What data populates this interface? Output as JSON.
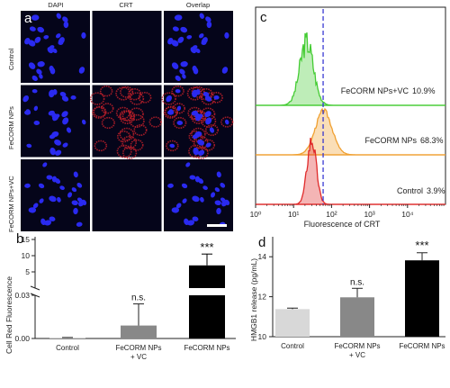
{
  "panel_a": {
    "letter": "a",
    "columns": [
      "DAPI",
      "CRT",
      "Overlap"
    ],
    "rows": [
      "Control",
      "FeCORM NPs",
      "FeCORM NPs+VC"
    ],
    "colors": {
      "nucleus": "#2a2af0",
      "crt": "#c0202a",
      "background": "#05051a"
    }
  },
  "panel_b": {
    "letter": "b",
    "ylabel": "Cell Red Fluorescence",
    "yticks_lower": [
      "0.00",
      "0.03"
    ],
    "yticks_upper": [
      "5",
      "10",
      "15"
    ],
    "categories": [
      "Control",
      "FeCORM NPs\n+ VC",
      "FeCORM NPs"
    ],
    "significance": [
      "",
      "n.s.",
      "***"
    ]
  },
  "panel_c": {
    "letter": "c",
    "xlabel": "Fluorescence of CRT",
    "xticks": [
      "10⁰",
      "10¹",
      "10²",
      "10³",
      "10⁴"
    ],
    "labels": [
      {
        "name": "FeCORM NPs+VC",
        "value": "10.9%"
      },
      {
        "name": "FeCORM NPs",
        "value": "68.3%"
      },
      {
        "name": "Control",
        "value": "3.9%"
      }
    ],
    "colors": {
      "vc": "#44cc33",
      "np": "#f0a030",
      "control": "#e02a2a",
      "dash": "#2a2ad0"
    }
  },
  "panel_d": {
    "letter": "d",
    "ylabel": "HMGB1 release (pg/mL)",
    "yticks": [
      "10",
      "12",
      "14"
    ],
    "categories": [
      "Control",
      "FeCORM NPs\n+ VC",
      "FeCORM NPs"
    ],
    "significance": [
      "",
      "n.s.",
      "***"
    ]
  },
  "chart_data": [
    {
      "type": "bar",
      "panel": "b",
      "title": "",
      "xlabel": "",
      "ylabel": "Cell Red Fluorescence",
      "y_axis_broken": true,
      "lower_ylim": [
        0,
        0.03
      ],
      "upper_ylim": [
        0,
        15
      ],
      "categories": [
        "Control",
        "FeCORM NPs + VC",
        "FeCORM NPs"
      ],
      "values": [
        0.0005,
        0.009,
        7.0
      ],
      "errors": [
        0.0002,
        0.015,
        3.5
      ],
      "bar_colors": [
        "#c8c8c8",
        "#888888",
        "#000000"
      ]
    },
    {
      "type": "bar",
      "panel": "d",
      "title": "",
      "xlabel": "",
      "ylabel": "HMGB1 release (pg/mL)",
      "ylim": [
        10,
        15
      ],
      "categories": [
        "Control",
        "FeCORM NPs + VC",
        "FeCORM NPs"
      ],
      "values": [
        11.38,
        11.97,
        13.82
      ],
      "errors": [
        0.05,
        0.45,
        0.38
      ],
      "bar_colors": [
        "#d8d8d8",
        "#888888",
        "#000000"
      ]
    },
    {
      "type": "area",
      "panel": "c",
      "xlabel": "Fluorescence of CRT",
      "x_scale": "log",
      "xlim": [
        1,
        100000
      ],
      "gate_x": 60,
      "series": [
        {
          "name": "FeCORM NPs+VC",
          "value": "10.9%"
        },
        {
          "name": "FeCORM NPs",
          "value": "68.3%"
        },
        {
          "name": "Control",
          "value": "3.9%"
        }
      ]
    }
  ]
}
